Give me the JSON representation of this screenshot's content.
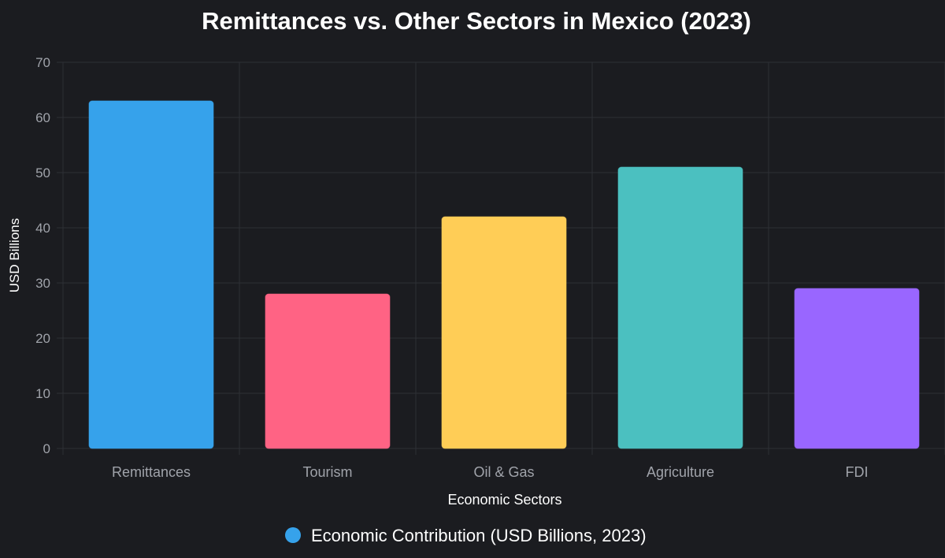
{
  "chart_data": {
    "type": "bar",
    "title": "Remittances vs. Other Sectors in Mexico (2023)",
    "xlabel": "Economic Sectors",
    "ylabel": "USD Billions",
    "categories": [
      "Remittances",
      "Tourism",
      "Oil & Gas",
      "Agriculture",
      "FDI"
    ],
    "series": [
      {
        "name": "Economic Contribution (USD Billions, 2023)",
        "values": [
          63,
          28,
          42,
          51,
          29
        ]
      }
    ],
    "ylim": [
      0,
      70
    ],
    "yticks": [
      0,
      10,
      20,
      30,
      40,
      50,
      60,
      70
    ],
    "grid": true,
    "legend_position": "bottom",
    "colors": [
      "#36a2eb",
      "#ff6384",
      "#ffcd56",
      "#4bc0c0",
      "#9966ff"
    ],
    "legend_marker_color": "#36a2eb",
    "background": "#1b1c20",
    "grid_color": "#2e3035"
  }
}
